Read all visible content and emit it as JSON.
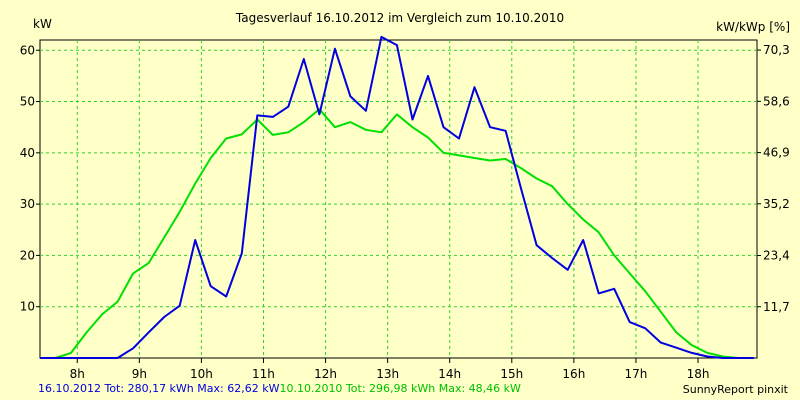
{
  "chart_data": {
    "type": "line",
    "title": "Tagesverlauf 16.10.2012 im Vergleich zum 10.10.2010",
    "ylabel_left": "kW",
    "ylabel_right": "kW/kWp [%]",
    "xlim": [
      7.4,
      18.95
    ],
    "ylim": [
      0,
      62
    ],
    "x_ticks": [
      8,
      9,
      10,
      11,
      12,
      13,
      14,
      15,
      16,
      17,
      18
    ],
    "x_tick_labels": [
      "8h",
      "9h",
      "10h",
      "11h",
      "12h",
      "13h",
      "14h",
      "15h",
      "16h",
      "17h",
      "18h"
    ],
    "y_ticks": [
      10,
      20,
      30,
      40,
      50,
      60
    ],
    "y_tick_labels": [
      "10",
      "20",
      "30",
      "40",
      "50",
      "60"
    ],
    "y2_ticks": [
      11.7,
      23.4,
      35.2,
      46.9,
      58.6,
      70.3
    ],
    "y2_tick_labels": [
      "11,7",
      "23,4",
      "35,2",
      "46,9",
      "58,6",
      "70,3"
    ],
    "y2_lim": [
      0,
      72.6
    ],
    "grid": true,
    "series": [
      {
        "name": "16.10.2012",
        "color": "#0000E0",
        "x": [
          7.4,
          7.65,
          7.9,
          8.15,
          8.4,
          8.65,
          8.9,
          9.15,
          9.4,
          9.65,
          9.9,
          10.15,
          10.4,
          10.65,
          10.9,
          11.15,
          11.4,
          11.65,
          11.9,
          12.15,
          12.4,
          12.65,
          12.9,
          13.15,
          13.4,
          13.65,
          13.9,
          14.15,
          14.4,
          14.65,
          14.9,
          15.15,
          15.4,
          15.65,
          15.9,
          16.15,
          16.4,
          16.65,
          16.9,
          17.15,
          17.4,
          17.65,
          17.9,
          18.15,
          18.4,
          18.65,
          18.9
        ],
        "values": [
          0,
          0,
          0,
          0,
          0,
          0,
          1.9,
          5.0,
          8.0,
          10.2,
          23.0,
          14.0,
          12.0,
          20.4,
          47.3,
          47.0,
          49.0,
          58.3,
          47.5,
          60.3,
          51.0,
          48.2,
          62.6,
          61.0,
          46.5,
          55.0,
          45.0,
          42.8,
          52.8,
          45.0,
          44.3,
          33.0,
          22.0,
          19.5,
          17.2,
          23.0,
          12.6,
          13.5,
          7.0,
          5.8,
          3.0,
          2.0,
          1.0,
          0.3,
          0,
          0,
          0
        ]
      },
      {
        "name": "10.10.2010",
        "color": "#00E000",
        "x": [
          7.4,
          7.65,
          7.9,
          8.15,
          8.4,
          8.65,
          8.9,
          9.15,
          9.4,
          9.65,
          9.9,
          10.15,
          10.4,
          10.65,
          10.9,
          11.15,
          11.4,
          11.65,
          11.9,
          12.15,
          12.4,
          12.65,
          12.9,
          13.15,
          13.4,
          13.65,
          13.9,
          14.15,
          14.4,
          14.65,
          14.9,
          15.15,
          15.4,
          15.65,
          15.9,
          16.15,
          16.4,
          16.65,
          16.9,
          17.15,
          17.4,
          17.65,
          17.9,
          18.15,
          18.4,
          18.65,
          18.9
        ],
        "values": [
          0,
          0,
          1.0,
          5.0,
          8.5,
          11.0,
          16.5,
          18.5,
          23.5,
          28.5,
          34.0,
          39.0,
          42.8,
          43.6,
          46.5,
          43.5,
          44.0,
          46.0,
          48.5,
          45.0,
          46.0,
          44.5,
          44.0,
          47.5,
          45.0,
          43.0,
          40.0,
          39.5,
          39.0,
          38.5,
          38.8,
          37.0,
          35.0,
          33.5,
          30.0,
          27.0,
          24.5,
          20.0,
          16.5,
          13.0,
          9.0,
          5.0,
          2.5,
          1.0,
          0.3,
          0,
          0
        ]
      }
    ]
  },
  "footer": {
    "series1_text": "16.10.2012 Tot: 280,17 kWh Max: 62,62 kW",
    "series1_color": "#0000E0",
    "series2_text": "10.10.2010 Tot: 296,98 kWh Max: 48,46 kW",
    "series2_color": "#00C000",
    "credit": "SunnyReport pinxit"
  }
}
